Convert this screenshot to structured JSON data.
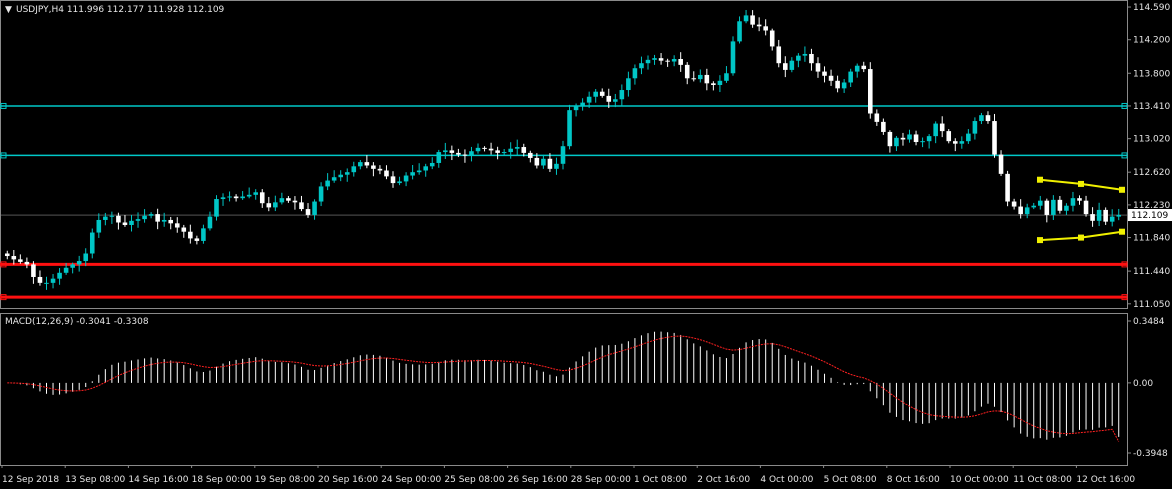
{
  "header": {
    "arrow_glyph": "▼",
    "symbol_line": "USDJPY,H4  111.996 112.177 111.928 112.109"
  },
  "macd_header": "MACD(12,26,9) -0.3041 -0.3308",
  "colors": {
    "background": "#000000",
    "grid": "#8a8a8a",
    "bull_candle": "#00c6c6",
    "bear_candle": "#ffffff",
    "support_lines": "#ff1010",
    "resistance_lines": "#00c8c8",
    "triangle": "#f0f000",
    "macd_hist": "#ffffff",
    "macd_signal": "#ff2020",
    "axis_text": "#e6e6e6"
  },
  "chart_data": {
    "type": "candlestick",
    "symbol": "USDJPY",
    "timeframe": "H4",
    "price_axis": {
      "ticks": [
        "114.590",
        "114.200",
        "113.800",
        "113.410",
        "113.020",
        "112.620",
        "112.230",
        "111.840",
        "111.440",
        "111.050"
      ],
      "ylim": [
        111.0,
        114.65
      ],
      "current_price_label": "112.109",
      "grid": true
    },
    "time_axis": {
      "labels": [
        "12 Sep 2018",
        "13 Sep 08:00",
        "14 Sep 16:00",
        "18 Sep 00:00",
        "19 Sep 08:00",
        "20 Sep 16:00",
        "24 Sep 00:00",
        "25 Sep 08:00",
        "26 Sep 16:00",
        "28 Sep 00:00",
        "1 Oct 08:00",
        "2 Oct 16:00",
        "4 Oct 00:00",
        "5 Oct 08:00",
        "8 Oct 16:00",
        "10 Oct 00:00",
        "11 Oct 08:00",
        "12 Oct 16:00"
      ]
    },
    "horizontal_levels": [
      {
        "price": 113.41,
        "color": "resistance"
      },
      {
        "price": 112.82,
        "color": "resistance"
      },
      {
        "price": 111.52,
        "color": "support"
      },
      {
        "price": 111.13,
        "color": "support"
      }
    ],
    "triangle": {
      "upper": [
        [
          0,
          112.53
        ],
        [
          1,
          112.48
        ],
        [
          2,
          112.41
        ]
      ],
      "lower": [
        [
          0,
          111.81
        ],
        [
          1,
          111.84
        ],
        [
          2,
          111.91
        ]
      ]
    },
    "close_series": [
      111.62,
      111.58,
      111.55,
      111.52,
      111.37,
      111.3,
      111.3,
      111.35,
      111.42,
      111.48,
      111.52,
      111.56,
      111.65,
      111.9,
      112.05,
      112.09,
      112.1,
      112.02,
      111.99,
      112.04,
      112.06,
      112.1,
      112.12,
      112.03,
      112.05,
      112.01,
      111.96,
      111.91,
      111.83,
      111.8,
      111.95,
      112.09,
      112.3,
      112.32,
      112.33,
      112.31,
      112.33,
      112.35,
      112.38,
      112.25,
      112.2,
      112.26,
      112.31,
      112.28,
      112.26,
      112.18,
      112.11,
      112.27,
      112.45,
      112.52,
      112.56,
      112.59,
      112.62,
      112.69,
      112.74,
      112.7,
      112.66,
      112.64,
      112.57,
      112.49,
      112.51,
      112.58,
      112.62,
      112.64,
      112.69,
      112.73,
      112.86,
      112.88,
      112.85,
      112.83,
      112.82,
      112.87,
      112.91,
      112.9,
      112.88,
      112.85,
      112.86,
      112.9,
      112.92,
      112.85,
      112.79,
      112.7,
      112.78,
      112.66,
      112.72,
      112.93,
      113.36,
      113.41,
      113.45,
      113.52,
      113.58,
      113.53,
      113.46,
      113.49,
      113.6,
      113.74,
      113.86,
      113.92,
      113.96,
      113.98,
      113.95,
      113.94,
      113.97,
      113.9,
      113.74,
      113.73,
      113.78,
      113.68,
      113.66,
      113.71,
      113.8,
      114.18,
      114.42,
      114.49,
      114.38,
      114.36,
      114.31,
      114.12,
      113.92,
      113.84,
      113.95,
      114.01,
      114.03,
      113.92,
      113.82,
      113.77,
      113.71,
      113.62,
      113.69,
      113.82,
      113.89,
      113.85,
      113.32,
      113.22,
      113.1,
      112.93,
      113.03,
      113.01,
      113.07,
      112.98,
      112.99,
      113.05,
      113.2,
      113.11,
      112.99,
      112.96,
      112.99,
      113.08,
      113.23,
      113.3,
      113.23,
      112.83,
      112.6,
      112.27,
      112.21,
      112.12,
      112.2,
      112.22,
      112.28,
      112.11,
      112.29,
      112.16,
      112.22,
      112.31,
      112.28,
      112.12,
      112.04,
      112.17,
      112.03,
      112.09,
      112.11
    ],
    "macd": {
      "ylim": [
        -0.3948,
        0.3484
      ],
      "ticks": [
        "0.3484",
        "0.00",
        "-0.3948"
      ],
      "last_histogram": -0.3041,
      "last_signal": -0.3308
    }
  }
}
